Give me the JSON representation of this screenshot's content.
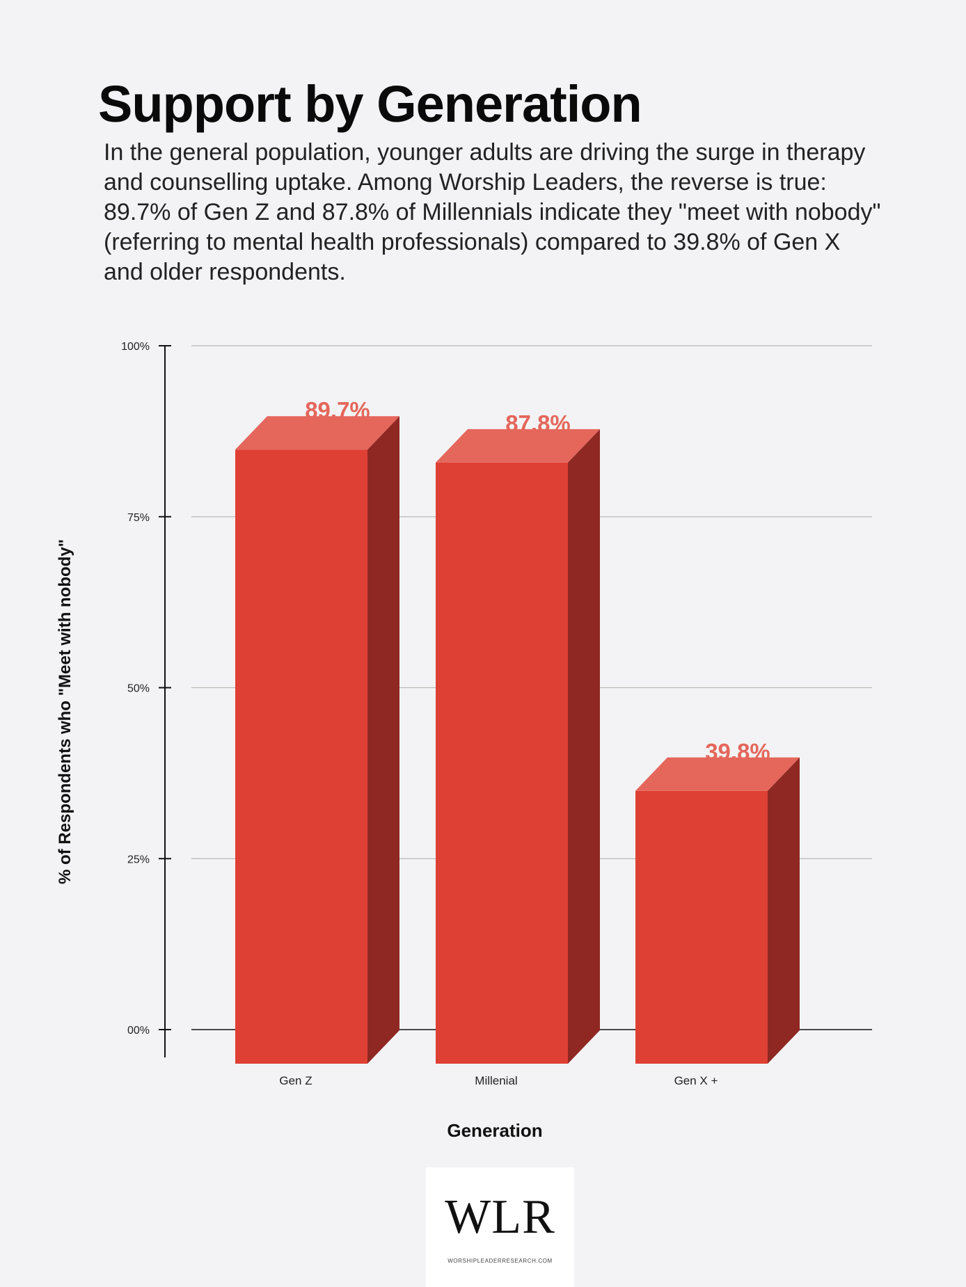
{
  "title": "Support by Generation",
  "subtitle": "In the general population, younger adults are driving the surge in therapy and counselling uptake. Among Worship Leaders, the reverse is true: 89.7% of Gen Z and 87.8% of Millennials indicate they \"meet with nobody\" (referring to mental health professionals) compared to 39.8% of Gen X and older respondents.",
  "colors": {
    "bar_front": "#df4034",
    "bar_top": "#e5665b",
    "bar_side": "#8f2822",
    "label": "#e5665b",
    "grid": "#b8b8b8",
    "axis": "#111111",
    "background": "#f3f3f5"
  },
  "chart_data": {
    "type": "bar",
    "categories": [
      "Gen Z",
      "Millenial",
      "Gen X +"
    ],
    "values": [
      89.7,
      87.8,
      39.8
    ],
    "data_labels": [
      "89.7%",
      "87.8%",
      "39.8%"
    ],
    "xlabel": "Generation",
    "ylabel": "% of Respondents who \"Meet with nobody\"",
    "ylim": [
      0,
      100
    ],
    "yticks": [
      0,
      25,
      50,
      75,
      100
    ],
    "ytick_labels": [
      "00%",
      "25%",
      "50%",
      "75%",
      "100%"
    ],
    "grid": true,
    "style": "3d-bar"
  },
  "logo": {
    "mark": "WLR",
    "url": "WORSHIPLEADERRESEARCH.COM"
  }
}
